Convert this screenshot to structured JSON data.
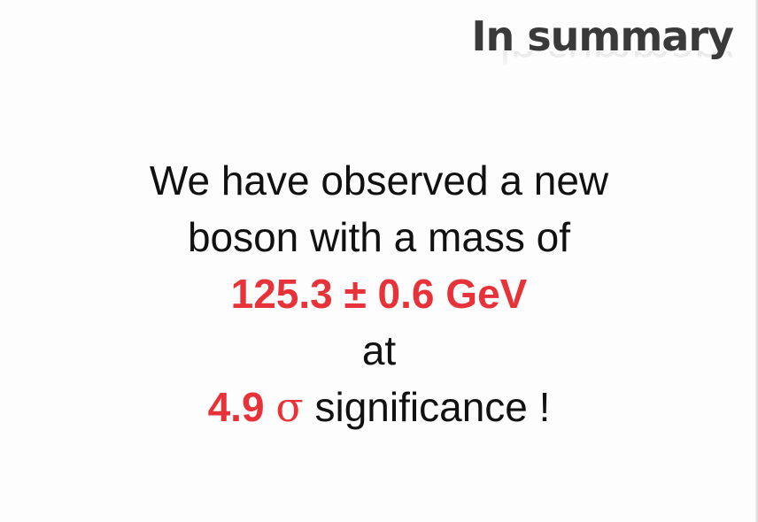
{
  "slide": {
    "title": "In summary",
    "line1": "We have observed a new",
    "line2": "boson with a mass of",
    "mass_value": "125.3 ± 0.6 GeV",
    "line4": "at",
    "significance_value": "4.9",
    "sigma_symbol": "σ",
    "significance_text": " significance !"
  },
  "colors": {
    "highlight": "#e8323a",
    "text": "#111111",
    "title": "#3a3a3a"
  }
}
